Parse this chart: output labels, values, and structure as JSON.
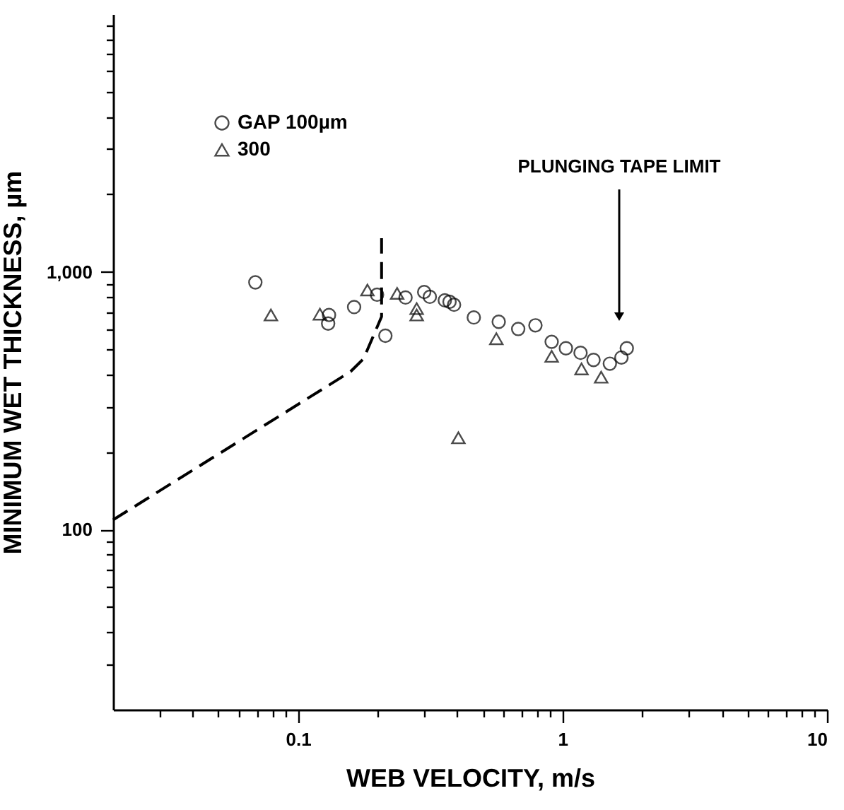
{
  "chart_data": {
    "type": "scatter",
    "xlabel": "WEB VELOCITY, m/s",
    "ylabel": "MINIMUM WET THICKNESS, µm",
    "log": "xy",
    "xlim": [
      0.02,
      10
    ],
    "ylim": [
      20,
      10000
    ],
    "xticks": [
      {
        "value": 0.03,
        "label": null
      },
      {
        "value": 0.04,
        "label": null
      },
      {
        "value": 0.05,
        "label": null
      },
      {
        "value": 0.06,
        "label": null
      },
      {
        "value": 0.07,
        "label": null
      },
      {
        "value": 0.08,
        "label": null
      },
      {
        "value": 0.09,
        "label": null
      },
      0.1,
      {
        "value": 0.2,
        "label": null
      },
      {
        "value": 0.3,
        "label": null
      },
      {
        "value": 0.4,
        "label": null
      },
      {
        "value": 0.5,
        "label": null
      },
      {
        "value": 0.6,
        "label": null
      },
      {
        "value": 0.7,
        "label": null
      },
      {
        "value": 0.8,
        "label": null
      },
      {
        "value": 0.9,
        "label": null
      },
      1,
      {
        "value": 2,
        "label": null
      },
      {
        "value": 3,
        "label": null
      },
      {
        "value": 4,
        "label": null
      },
      {
        "value": 5,
        "label": null
      },
      {
        "value": 6,
        "label": null
      },
      {
        "value": 7,
        "label": null
      },
      {
        "value": 8,
        "label": null
      },
      {
        "value": 9,
        "label": null
      },
      10
    ],
    "yticks": [
      {
        "value": 30,
        "label": null
      },
      {
        "value": 40,
        "label": null
      },
      {
        "value": 50,
        "label": null
      },
      {
        "value": 60,
        "label": null
      },
      {
        "value": 70,
        "label": null
      },
      {
        "value": 80,
        "label": null
      },
      {
        "value": 90,
        "label": null
      },
      100,
      {
        "value": 200,
        "label": null
      },
      {
        "value": 300,
        "label": null
      },
      {
        "value": 400,
        "label": null
      },
      {
        "value": 500,
        "label": null
      },
      {
        "value": 600,
        "label": null
      },
      {
        "value": 700,
        "label": null
      },
      {
        "value": 800,
        "label": null
      },
      {
        "value": 900,
        "label": null
      },
      {
        "value": 1000,
        "label": "1,000"
      },
      {
        "value": 2000,
        "label": null
      },
      {
        "value": 3000,
        "label": null
      },
      {
        "value": 4000,
        "label": null
      },
      {
        "value": 5000,
        "label": null
      },
      {
        "value": 6000,
        "label": null
      },
      {
        "value": 7000,
        "label": null
      },
      {
        "value": 8000,
        "label": null
      },
      {
        "value": 9000,
        "label": null
      }
    ],
    "grid": false,
    "legend": "top left",
    "series": [
      {
        "name": "GAP 100µm",
        "marker": "circle",
        "color": "#000000",
        "x": [
          0.069,
          0.131,
          0.13,
          0.163,
          0.199,
          0.214,
          0.255,
          0.3,
          0.315,
          0.359,
          0.374,
          0.389,
          0.462,
          0.574,
          0.68,
          0.79,
          0.91,
          1.03,
          1.17,
          1.31,
          1.51,
          1.67,
          1.75
        ],
        "values": [
          910,
          680,
          630,
          730,
          815,
          565,
          795,
          835,
          800,
          775,
          765,
          745,
          665,
          640,
          600,
          620,
          535,
          505,
          485,
          455,
          440,
          465,
          505
        ]
      },
      {
        "name": "300",
        "marker": "triangle",
        "color": "#000000",
        "x": [
          0.079,
          0.121,
          0.183,
          0.237,
          0.281,
          0.281,
          0.404,
          0.562,
          0.91,
          1.18,
          1.4
        ],
        "values": [
          680,
          685,
          850,
          825,
          720,
          680,
          227,
          550,
          470,
          420,
          390
        ]
      },
      {
        "type": "line",
        "line_style": "dashed",
        "marker": "none",
        "color": "#000000",
        "x": [
          0.02,
          0.158,
          0.177,
          0.207,
          0.207
        ],
        "values": [
          109,
          410,
          460,
          670,
          1350
        ]
      }
    ],
    "annotations": [
      "PLUNGING TAPE LIMIT"
    ]
  }
}
